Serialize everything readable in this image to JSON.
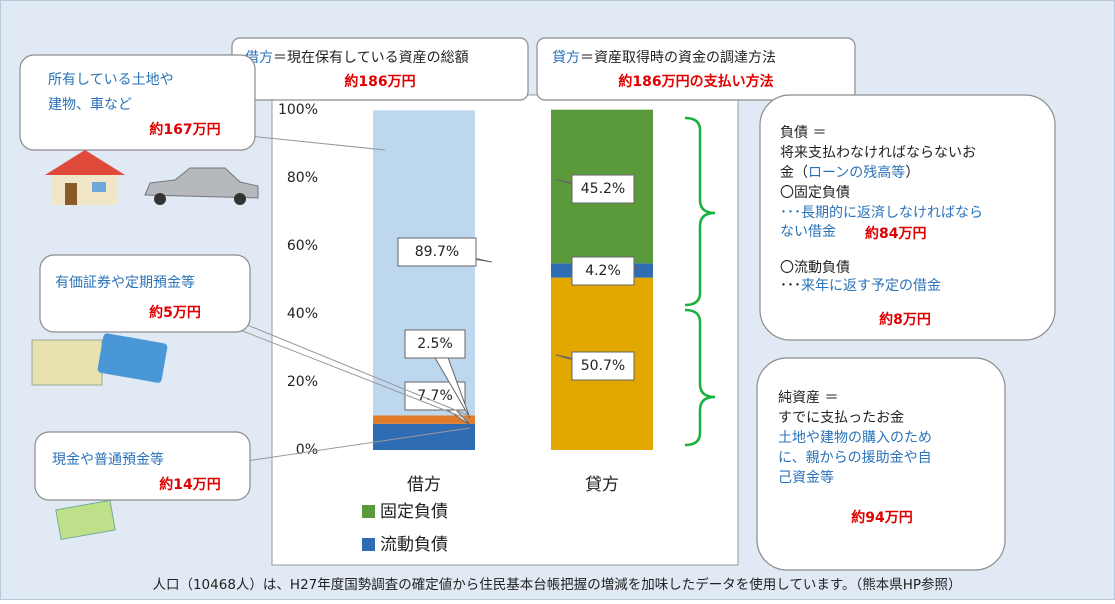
{
  "chart_data": {
    "type": "stacked-bar",
    "categories": [
      "借方",
      "貸方"
    ],
    "stacks": [
      {
        "values": [
          7.7,
          2.5,
          89.7
        ],
        "value_labels": [
          "7.7%",
          "2.5%",
          "89.7%"
        ],
        "colors": [
          "#2e6db4",
          "#e07b28",
          "#bdd7ee"
        ]
      },
      {
        "values": [
          50.7,
          4.2,
          45.2
        ],
        "value_labels": [
          "50.7%",
          "4.2%",
          "45.2%"
        ],
        "colors": [
          "#e2a800",
          "#2e6db4",
          "#5a9a3a"
        ]
      }
    ],
    "ylim": [
      0,
      100
    ],
    "yticks": [
      {
        "value": 0,
        "label": "0%"
      },
      {
        "value": 20,
        "label": "20%"
      },
      {
        "value": 40,
        "label": "40%"
      },
      {
        "value": 60,
        "label": "60%"
      },
      {
        "value": 80,
        "label": "80%"
      },
      {
        "value": 100,
        "label": "100%"
      }
    ],
    "legend": [
      {
        "name": "固定負債",
        "color": "#5a9a3a"
      },
      {
        "name": "流動負債",
        "color": "#2e6db4"
      }
    ]
  },
  "callouts": {
    "debit": {
      "head": "借方",
      "text": "＝現在保有している資産の総額",
      "amount": "約186万円"
    },
    "credit": {
      "head": "貸方",
      "text": "＝資産取得時の資金の調達方法",
      "amount": "約186万円の支払い方法"
    },
    "land": {
      "lines": [
        "所有している土地や",
        "建物、車など"
      ],
      "amount": "約167万円"
    },
    "securities": {
      "lines": [
        "有価証券や定期預金等"
      ],
      "amount": "約5万円"
    },
    "cash": {
      "lines": [
        "現金や普通預金等"
      ],
      "amount": "約14万円"
    },
    "liabilities": {
      "head": "負債 ＝",
      "line": "将来支払わなければならないお",
      "note_pre": "金（",
      "note": "ローンの残高等",
      "note_post": "）",
      "fixed": "〇固定負債",
      "fixed_desc": [
        "･･･長期的に返済しなければなら",
        "ない借金"
      ],
      "fixed_amount": "約84万円",
      "current": "〇流動負債",
      "current_dots": "･･･",
      "current_desc": "来年に返す予定の借金",
      "current_amount": "約8万円"
    },
    "equity": {
      "head": "純資産 ＝",
      "text": "すでに支払ったお金",
      "desc": [
        "土地や建物の購入のため",
        "に、親からの援助金や自",
        "己資金等"
      ],
      "amount": "約94万円"
    }
  },
  "footer": "人口（10468人）は、H27年度国勢調査の確定値から住民基本台帳把握の増減を加味したデータを使用しています。（熊本県HP参照）"
}
